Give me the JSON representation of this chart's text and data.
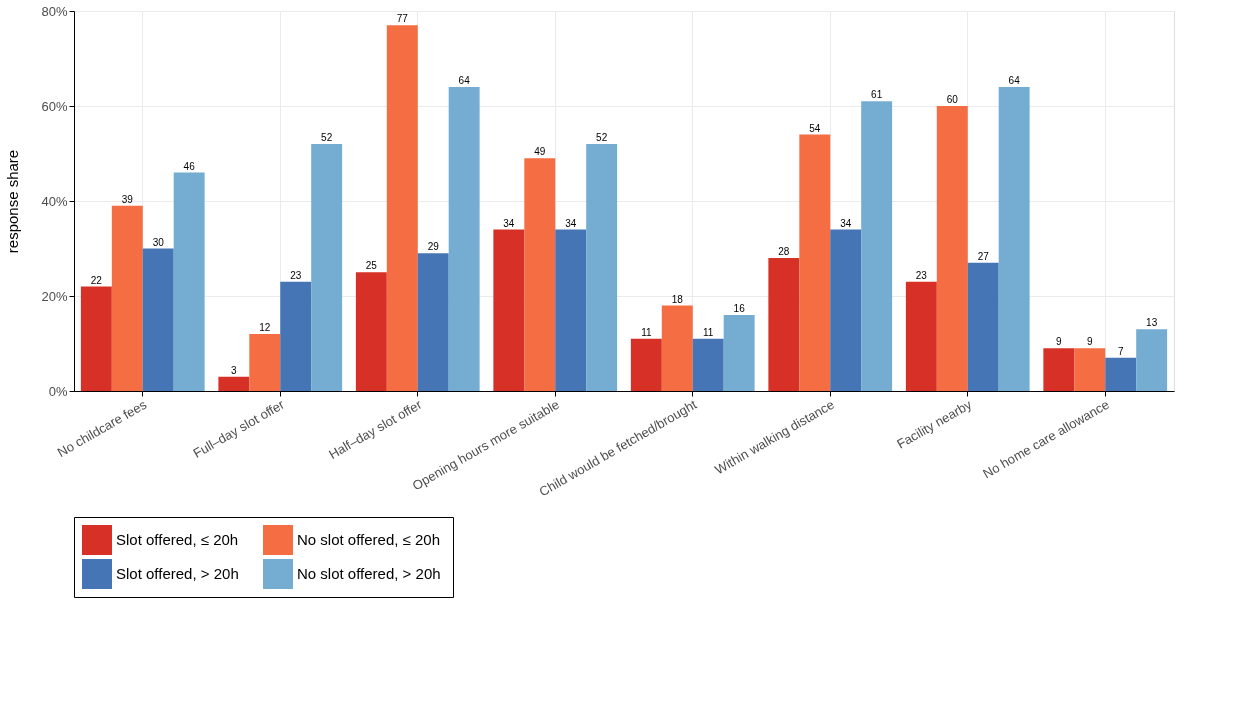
{
  "chart_data": {
    "type": "bar",
    "ylabel": "response share",
    "categories": [
      "No childcare fees",
      "Full–day slot offer",
      "Half–day slot offer",
      "Opening hours more suitable",
      "Child would be fetched/brought",
      "Within walking distance",
      "Facility nearby",
      "No home care allowance"
    ],
    "series": [
      {
        "name": "Slot offered,  ≤ 20h",
        "color": "#d73027",
        "values": [
          22,
          3,
          25,
          34,
          11,
          28,
          23,
          9
        ]
      },
      {
        "name": "No slot offered,  ≤ 20h",
        "color": "#f46d43",
        "values": [
          39,
          12,
          77,
          49,
          18,
          54,
          60,
          9
        ]
      },
      {
        "name": "Slot offered, > 20h",
        "color": "#4575b4",
        "values": [
          30,
          23,
          29,
          34,
          11,
          34,
          27,
          7
        ]
      },
      {
        "name": "No slot offered, > 20h",
        "color": "#74add1",
        "values": [
          46,
          52,
          64,
          52,
          16,
          61,
          64,
          13
        ]
      }
    ],
    "ylim": [
      0,
      80
    ],
    "yticks": [
      {
        "value": 0,
        "label": "0%"
      },
      {
        "value": 20,
        "label": "20%"
      },
      {
        "value": 40,
        "label": "40%"
      },
      {
        "value": 60,
        "label": "60%"
      },
      {
        "value": 80,
        "label": "80%"
      }
    ],
    "data_labels": true,
    "grid": true,
    "legend": "bottom"
  }
}
